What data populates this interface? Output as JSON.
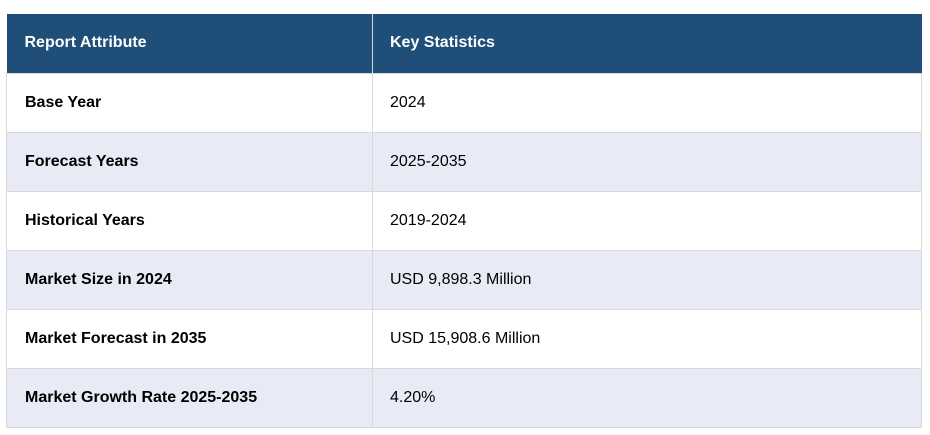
{
  "table": {
    "headers": {
      "attribute": "Report Attribute",
      "statistics": "Key Statistics"
    },
    "rows": [
      {
        "attribute": "Base Year",
        "value": "2024"
      },
      {
        "attribute": "Forecast Years",
        "value": "2025-2035"
      },
      {
        "attribute": "Historical Years",
        "value": "2019-2024"
      },
      {
        "attribute": "Market Size in 2024",
        "value": "USD 9,898.3 Million"
      },
      {
        "attribute": "Market Forecast in 2035",
        "value": "USD 15,908.6 Million"
      },
      {
        "attribute": "Market Growth Rate 2025-2035",
        "value": "4.20%"
      }
    ],
    "colors": {
      "header_bg": "#1f4e79",
      "header_text": "#ffffff",
      "alt_row_bg": "#e8eaf6",
      "border": "#d9d9d9"
    }
  }
}
